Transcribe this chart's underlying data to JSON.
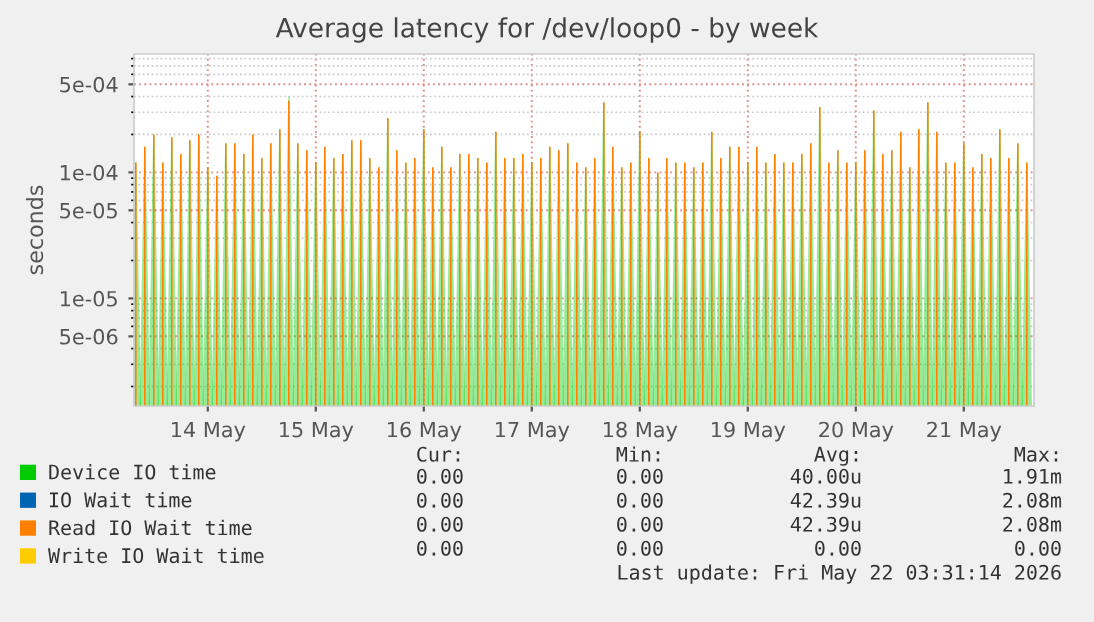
{
  "chart_data": {
    "type": "bar",
    "title": "Average latency for /dev/loop0 - by week",
    "ylabel": "seconds",
    "log": true,
    "grid": true,
    "legend": "bottom",
    "xlim": [
      "2026-05-13T07:36",
      "2026-05-21T15:36"
    ],
    "xticks": [
      {
        "value": "2026-05-14",
        "label": "14 May"
      },
      {
        "value": "2026-05-15",
        "label": "15 May"
      },
      {
        "value": "2026-05-16",
        "label": "16 May"
      },
      {
        "value": "2026-05-17",
        "label": "17 May"
      },
      {
        "value": "2026-05-18",
        "label": "18 May"
      },
      {
        "value": "2026-05-19",
        "label": "19 May"
      },
      {
        "value": "2026-05-20",
        "label": "20 May"
      },
      {
        "value": "2026-05-21",
        "label": "21 May"
      }
    ],
    "ylim": [
      1.4e-06,
      0.00087
    ],
    "yticks": [
      {
        "value": 5e-06,
        "label": "5e-06"
      },
      {
        "value": 1e-05,
        "label": "1e-05"
      },
      {
        "value": 5e-05,
        "label": "5e-05"
      },
      {
        "value": 0.0001,
        "label": "1e-04"
      },
      {
        "value": 0.0005,
        "label": "5e-04"
      }
    ],
    "x": [
      "2026-05-13T08:00",
      "2026-05-13T10:00",
      "2026-05-13T12:00",
      "2026-05-13T14:00",
      "2026-05-13T16:00",
      "2026-05-13T18:00",
      "2026-05-13T20:00",
      "2026-05-13T22:00",
      "2026-05-14T00:00",
      "2026-05-14T02:00",
      "2026-05-14T04:00",
      "2026-05-14T06:00",
      "2026-05-14T08:00",
      "2026-05-14T10:00",
      "2026-05-14T12:00",
      "2026-05-14T14:00",
      "2026-05-14T16:00",
      "2026-05-14T18:00",
      "2026-05-14T20:00",
      "2026-05-14T22:00",
      "2026-05-15T00:00",
      "2026-05-15T02:00",
      "2026-05-15T04:00",
      "2026-05-15T06:00",
      "2026-05-15T08:00",
      "2026-05-15T10:00",
      "2026-05-15T12:00",
      "2026-05-15T14:00",
      "2026-05-15T16:00",
      "2026-05-15T18:00",
      "2026-05-15T20:00",
      "2026-05-15T22:00",
      "2026-05-16T00:00",
      "2026-05-16T02:00",
      "2026-05-16T04:00",
      "2026-05-16T06:00",
      "2026-05-16T08:00",
      "2026-05-16T10:00",
      "2026-05-16T12:00",
      "2026-05-16T14:00",
      "2026-05-16T16:00",
      "2026-05-16T18:00",
      "2026-05-16T20:00",
      "2026-05-16T22:00",
      "2026-05-17T00:00",
      "2026-05-17T02:00",
      "2026-05-17T04:00",
      "2026-05-17T06:00",
      "2026-05-17T08:00",
      "2026-05-17T10:00",
      "2026-05-17T12:00",
      "2026-05-17T14:00",
      "2026-05-17T16:00",
      "2026-05-17T18:00",
      "2026-05-17T20:00",
      "2026-05-17T22:00",
      "2026-05-18T00:00",
      "2026-05-18T02:00",
      "2026-05-18T04:00",
      "2026-05-18T06:00",
      "2026-05-18T08:00",
      "2026-05-18T10:00",
      "2026-05-18T12:00",
      "2026-05-18T14:00",
      "2026-05-18T16:00",
      "2026-05-18T18:00",
      "2026-05-18T20:00",
      "2026-05-18T22:00",
      "2026-05-19T00:00",
      "2026-05-19T02:00",
      "2026-05-19T04:00",
      "2026-05-19T06:00",
      "2026-05-19T08:00",
      "2026-05-19T10:00",
      "2026-05-19T12:00",
      "2026-05-19T14:00",
      "2026-05-19T16:00",
      "2026-05-19T18:00",
      "2026-05-19T20:00",
      "2026-05-19T22:00",
      "2026-05-20T00:00",
      "2026-05-20T02:00",
      "2026-05-20T04:00",
      "2026-05-20T06:00",
      "2026-05-20T08:00",
      "2026-05-20T10:00",
      "2026-05-20T12:00",
      "2026-05-20T14:00",
      "2026-05-20T16:00",
      "2026-05-20T18:00",
      "2026-05-20T20:00",
      "2026-05-20T22:00",
      "2026-05-21T00:00",
      "2026-05-21T02:00",
      "2026-05-21T04:00",
      "2026-05-21T06:00",
      "2026-05-21T08:00",
      "2026-05-21T10:00",
      "2026-05-21T12:00",
      "2026-05-21T14:00"
    ],
    "series": [
      {
        "name": "Device IO time",
        "type": "area",
        "color": "#00cc00",
        "values": [
          0.00012,
          0.00016,
          0.0002,
          0.00012,
          0.00019,
          0.00014,
          0.00018,
          0.0002,
          0.00011,
          9.4e-05,
          0.00017,
          0.00017,
          0.00014,
          0.0002,
          0.00013,
          0.00017,
          0.00022,
          0.0004,
          0.00017,
          0.00015,
          0.00012,
          0.00016,
          0.00013,
          0.00014,
          0.00018,
          0.00018,
          0.00013,
          0.00011,
          0.00027,
          0.00015,
          0.00012,
          0.00013,
          0.00022,
          0.00011,
          0.00016,
          0.00011,
          0.00014,
          0.00014,
          0.00013,
          0.00012,
          0.00021,
          0.00013,
          0.00013,
          0.00014,
          0.00012,
          0.00013,
          0.00016,
          0.00015,
          0.00017,
          0.00012,
          0.00011,
          0.00013,
          0.00036,
          0.00016,
          0.00011,
          0.00012,
          0.00021,
          0.00013,
          0.0001,
          0.00013,
          0.00012,
          0.00012,
          0.00011,
          0.00012,
          0.00021,
          0.00013,
          0.00016,
          0.00016,
          0.00012,
          0.00016,
          0.00012,
          0.00014,
          0.00012,
          0.00012,
          0.00014,
          0.00017,
          0.00033,
          0.00012,
          0.00015,
          0.00012,
          0.00012,
          0.00015,
          0.00031,
          0.00014,
          0.00015,
          0.00021,
          0.00011,
          0.00022,
          0.00036,
          0.00021,
          0.00012,
          0.00012,
          0.00017,
          0.00011,
          0.00014,
          0.00013,
          0.00022,
          0.00013,
          0.00017,
          0.00012
        ]
      },
      {
        "name": "IO Wait time",
        "type": "line",
        "color": "#0066b3",
        "values": [
          null,
          null,
          null,
          null,
          null,
          null,
          null,
          null,
          null,
          null,
          null,
          null,
          null,
          null,
          null,
          null,
          null,
          null,
          null,
          null,
          null,
          null,
          null,
          null,
          null,
          null,
          null,
          null,
          null,
          null,
          null,
          null,
          null,
          null,
          null,
          null,
          null,
          null,
          null,
          null,
          null,
          null,
          null,
          null,
          null,
          null,
          null,
          null,
          null,
          null,
          null,
          null,
          null,
          null,
          null,
          null,
          null,
          null,
          null,
          null,
          null,
          null,
          null,
          null,
          null,
          null,
          null,
          null,
          null,
          null,
          null,
          null,
          null,
          null,
          null,
          null,
          null,
          null,
          null,
          null,
          null,
          null,
          null,
          null,
          null,
          null,
          null,
          null,
          null,
          null,
          null,
          null,
          null,
          null,
          null,
          null,
          null,
          null,
          null,
          null
        ]
      },
      {
        "name": "Read IO Wait time",
        "color": "#ff8000",
        "values": [
          0.00012,
          0.00016,
          0.0002,
          0.00012,
          0.00019,
          0.00014,
          0.00018,
          0.0002,
          0.00011,
          9.4e-05,
          0.00017,
          0.00017,
          0.00014,
          0.0002,
          0.00013,
          0.00017,
          0.00022,
          0.00037,
          0.00017,
          0.00015,
          0.00012,
          0.00016,
          0.00013,
          0.00014,
          0.00018,
          0.00018,
          0.00013,
          0.00011,
          0.00027,
          0.00015,
          0.00012,
          0.00013,
          0.00022,
          0.00011,
          0.00016,
          0.00011,
          0.00014,
          0.00014,
          0.00013,
          0.00012,
          0.00021,
          0.00013,
          0.00013,
          0.00014,
          0.00012,
          0.00013,
          0.00016,
          0.00015,
          0.00017,
          0.00012,
          0.00011,
          0.00013,
          0.00036,
          0.00016,
          0.00011,
          0.00012,
          0.00021,
          0.00013,
          0.0001,
          0.00013,
          0.00012,
          0.00012,
          0.00011,
          0.00012,
          0.00021,
          0.00013,
          0.00016,
          0.00016,
          0.00012,
          0.00016,
          0.00012,
          0.00014,
          0.00012,
          0.00012,
          0.00014,
          0.00017,
          0.00033,
          0.00012,
          0.00015,
          0.00012,
          0.00012,
          0.00015,
          0.00031,
          0.00014,
          0.00015,
          0.00021,
          0.00011,
          0.00022,
          0.00036,
          0.00021,
          0.00012,
          0.00012,
          0.00017,
          0.00011,
          0.00014,
          0.00013,
          0.00022,
          0.00013,
          0.00017,
          0.00012
        ]
      },
      {
        "name": "Write IO Wait time",
        "type": "line",
        "color": "#ffcc00",
        "values": [
          null,
          null,
          null,
          null,
          null,
          null,
          null,
          null,
          null,
          null,
          null,
          null,
          null,
          null,
          null,
          null,
          null,
          null,
          null,
          null,
          null,
          null,
          null,
          null,
          null,
          null,
          null,
          null,
          null,
          null,
          null,
          null,
          null,
          null,
          null,
          null,
          null,
          null,
          null,
          null,
          null,
          null,
          null,
          null,
          null,
          null,
          null,
          null,
          null,
          null,
          null,
          null,
          null,
          null,
          null,
          null,
          null,
          null,
          null,
          null,
          null,
          null,
          null,
          null,
          null,
          null,
          null,
          null,
          null,
          null,
          null,
          null,
          null,
          null,
          null,
          null,
          null,
          null,
          null,
          null,
          null,
          null,
          null,
          null,
          null,
          null,
          null,
          null,
          null,
          null,
          null,
          null,
          null,
          null,
          null,
          null,
          null,
          null,
          null,
          null
        ]
      }
    ],
    "annotations": [
      "Cur:",
      "Min:",
      "Avg:",
      "Max:",
      "0.00",
      "0.00",
      "40.00u",
      "1.91m",
      "0.00",
      "0.00",
      "42.39u",
      "2.08m",
      "0.00",
      "0.00",
      "42.39u",
      "2.08m",
      "0.00",
      "0.00",
      "0.00",
      "0.00",
      "Last update: Fri May 22 03:31:14 2026"
    ]
  }
}
